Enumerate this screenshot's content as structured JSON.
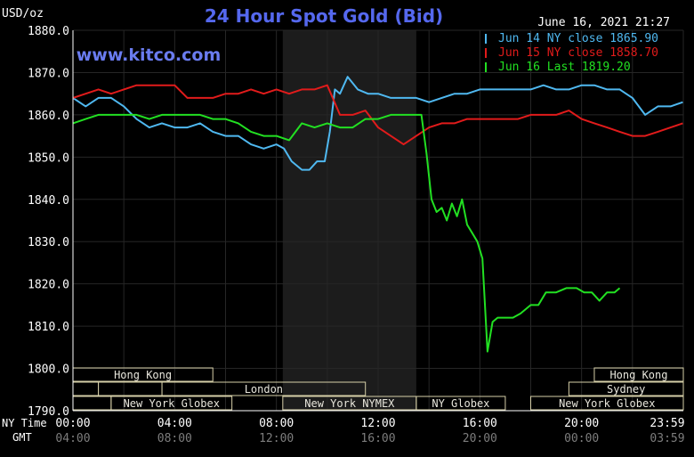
{
  "chart_data": {
    "type": "line",
    "title": "24 Hour Spot Gold (Bid)",
    "watermark": "www.kitco.com",
    "datetime": "June 16, 2021 21:27",
    "ylabel": "USD/oz",
    "ylim": [
      1790,
      1880
    ],
    "xlim": [
      0,
      24
    ],
    "y_ticks": [
      "1880.0",
      "1870.0",
      "1860.0",
      "1850.0",
      "1840.0",
      "1830.0",
      "1820.0",
      "1810.0",
      "1800.0",
      "1790.0"
    ],
    "x_tick_values": [
      0,
      4,
      8,
      12,
      16,
      20,
      23.983
    ],
    "x_ticks_ny": [
      "00:00",
      "04:00",
      "08:00",
      "12:00",
      "16:00",
      "20:00",
      "23:59"
    ],
    "x_ticks_gmt": [
      "04:00",
      "08:00",
      "12:00",
      "16:00",
      "20:00",
      "00:00",
      "03:59"
    ],
    "row_label_ny": "NY Time",
    "row_label_gmt": "GMT",
    "grid": true,
    "legend_position": "top-right",
    "shaded_region": {
      "from": 8.25,
      "to": 13.5
    },
    "colors": {
      "background": "#000000",
      "grid": "#262626",
      "axis": "#ffffff",
      "title": "#5568ee",
      "watermark": "#6a7cf0",
      "shade": "#1c1c1c",
      "session_box": "#d6cfa8",
      "session_text": "#e8e6dc"
    },
    "series": [
      {
        "name": "Jun 14 NY close 1865.90",
        "color": "#4fb8f0",
        "x": [
          0,
          0.5,
          1,
          1.5,
          2,
          2.5,
          3,
          3.5,
          4,
          4.5,
          5,
          5.5,
          6,
          6.5,
          7,
          7.5,
          8,
          8.3,
          8.6,
          9,
          9.3,
          9.6,
          9.9,
          10.1,
          10.3,
          10.5,
          10.8,
          11.2,
          11.6,
          12,
          12.5,
          13,
          13.5,
          14,
          14.5,
          15,
          15.5,
          16,
          16.5,
          17,
          17.5,
          18,
          18.5,
          19,
          19.5,
          20,
          20.5,
          21,
          21.5,
          22,
          22.5,
          23,
          23.5,
          23.98
        ],
        "values": [
          1864,
          1862,
          1864,
          1864,
          1862,
          1859,
          1857,
          1858,
          1857,
          1857,
          1858,
          1856,
          1855,
          1855,
          1853,
          1852,
          1853,
          1852,
          1849,
          1847,
          1847,
          1849,
          1849,
          1856,
          1866,
          1865,
          1869,
          1866,
          1865,
          1865,
          1864,
          1864,
          1864,
          1863,
          1864,
          1865,
          1865,
          1866,
          1866,
          1866,
          1866,
          1866,
          1867,
          1866,
          1866,
          1867,
          1867,
          1866,
          1866,
          1864,
          1860,
          1862,
          1862,
          1863
        ]
      },
      {
        "name": "Jun 15 NY close 1858.70",
        "color": "#e11b1b",
        "x": [
          0,
          0.5,
          1,
          1.5,
          2,
          2.5,
          3,
          3.5,
          4,
          4.5,
          5,
          5.5,
          6,
          6.5,
          7,
          7.5,
          8,
          8.5,
          9,
          9.5,
          10,
          10.5,
          11,
          11.5,
          12,
          12.5,
          13,
          13.5,
          14,
          14.5,
          15,
          15.5,
          16,
          16.5,
          17,
          17.5,
          18,
          18.5,
          19,
          19.5,
          20,
          20.5,
          21,
          21.5,
          22,
          22.5,
          23,
          23.5,
          23.98
        ],
        "values": [
          1864,
          1865,
          1866,
          1865,
          1866,
          1867,
          1867,
          1867,
          1867,
          1864,
          1864,
          1864,
          1865,
          1865,
          1866,
          1865,
          1866,
          1865,
          1866,
          1866,
          1867,
          1860,
          1860,
          1861,
          1857,
          1855,
          1853,
          1855,
          1857,
          1858,
          1858,
          1859,
          1859,
          1859,
          1859,
          1859,
          1860,
          1860,
          1860,
          1861,
          1859,
          1858,
          1857,
          1856,
          1855,
          1855,
          1856,
          1857,
          1858
        ]
      },
      {
        "name": "Jun 16 Last 1819.20",
        "color": "#22e022",
        "x": [
          0,
          0.5,
          1,
          1.5,
          2,
          2.5,
          3,
          3.5,
          4,
          4.5,
          5,
          5.5,
          6,
          6.5,
          7,
          7.5,
          8,
          8.5,
          9,
          9.5,
          10,
          10.5,
          11,
          11.5,
          12,
          12.5,
          13,
          13.5,
          13.7,
          13.9,
          14.1,
          14.3,
          14.5,
          14.7,
          14.9,
          15.1,
          15.3,
          15.5,
          15.7,
          15.9,
          16.1,
          16.3,
          16.5,
          16.7,
          16.9,
          17.1,
          17.3,
          17.6,
          18,
          18.3,
          18.6,
          19,
          19.4,
          19.8,
          20.1,
          20.4,
          20.7,
          21,
          21.3,
          21.5
        ],
        "values": [
          1858,
          1859,
          1860,
          1860,
          1860,
          1860,
          1859,
          1860,
          1860,
          1860,
          1860,
          1859,
          1859,
          1858,
          1856,
          1855,
          1855,
          1854,
          1858,
          1857,
          1858,
          1857,
          1857,
          1859,
          1859,
          1860,
          1860,
          1860,
          1860,
          1851,
          1840,
          1837,
          1838,
          1835,
          1839,
          1836,
          1840,
          1834,
          1832,
          1830,
          1826,
          1804,
          1811,
          1812,
          1812,
          1812,
          1812,
          1813,
          1815,
          1815,
          1818,
          1818,
          1819,
          1819,
          1818,
          1818,
          1816,
          1818,
          1818,
          1819
        ]
      }
    ],
    "session_rows": [
      [
        {
          "label": "Hong Kong",
          "from": 0,
          "to": 5.5
        },
        {
          "label": "Hong Kong",
          "from": 20.5,
          "to": 24
        }
      ],
      [
        {
          "label": "",
          "from": 0,
          "to": 1
        },
        {
          "label": "",
          "from": 1,
          "to": 3.5
        },
        {
          "label": "London",
          "from": 3.5,
          "to": 11.5
        },
        {
          "label": "Sydney",
          "from": 19.5,
          "to": 24
        }
      ],
      [
        {
          "label": "",
          "from": 0,
          "to": 1.5
        },
        {
          "label": "New York Globex",
          "from": 1.5,
          "to": 6.25
        },
        {
          "label": "New York NYMEX",
          "from": 8.25,
          "to": 13.5
        },
        {
          "label": "NY Globex",
          "from": 13.5,
          "to": 17
        },
        {
          "label": "New York Globex",
          "from": 18,
          "to": 24
        }
      ]
    ]
  }
}
